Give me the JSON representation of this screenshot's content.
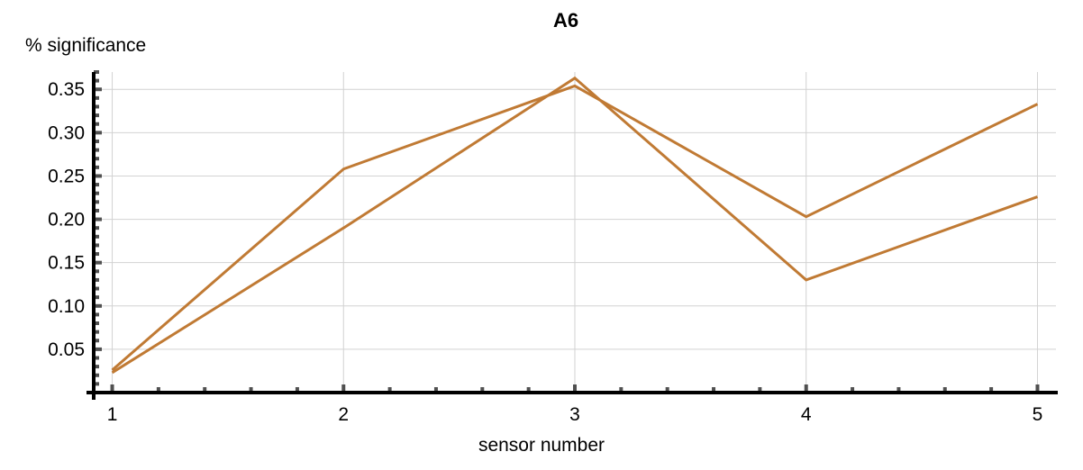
{
  "chart_data": {
    "type": "line",
    "title": "A6",
    "xlabel": "sensor number",
    "ylabel": "% significance",
    "x": [
      1,
      2,
      3,
      4,
      5
    ],
    "xlim": [
      0.92,
      5.08
    ],
    "ylim": [
      0.0,
      0.37
    ],
    "x_ticks": [
      1,
      2,
      3,
      4,
      5
    ],
    "x_tick_labels": [
      "1",
      "2",
      "3",
      "4",
      "5"
    ],
    "y_ticks": [
      0.05,
      0.1,
      0.15,
      0.2,
      0.25,
      0.3,
      0.35
    ],
    "y_tick_labels": [
      "0.05",
      "0.10",
      "0.15",
      "0.20",
      "0.25",
      "0.30",
      "0.35"
    ],
    "grid": true,
    "series": [
      {
        "values": [
          0.026,
          0.258,
          0.354,
          0.203,
          0.333
        ],
        "color": "#c07a34"
      },
      {
        "values": [
          0.023,
          0.19,
          0.363,
          0.13,
          0.226
        ],
        "color": "#c07a34"
      }
    ]
  }
}
